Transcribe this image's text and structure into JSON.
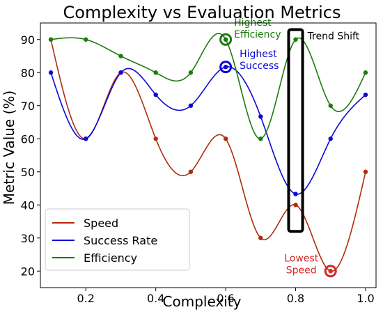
{
  "chart_data": {
    "type": "line",
    "title": "Complexity vs Evaluation Metrics",
    "xlabel": "Complexity",
    "ylabel": "Metric Value (%)",
    "xlim": [
      0.07,
      1.03
    ],
    "ylim": [
      15,
      95
    ],
    "xticks": [
      0.2,
      0.4,
      0.6,
      0.8,
      1.0
    ],
    "xtick_labels": [
      "0.2",
      "0.4",
      "0.6",
      "0.8",
      "1.0"
    ],
    "yticks": [
      20,
      30,
      40,
      50,
      60,
      70,
      80,
      90
    ],
    "ytick_labels": [
      "20",
      "30",
      "40",
      "50",
      "60",
      "70",
      "80",
      "90"
    ],
    "grid": false,
    "legend_position": "lower-left",
    "x": [
      0.1,
      0.2,
      0.3,
      0.4,
      0.5,
      0.6,
      0.7,
      0.8,
      0.9,
      1.0
    ],
    "series": [
      {
        "name": "Speed",
        "color": "#b22c0b",
        "values": [
          90,
          60,
          80,
          60,
          50,
          60,
          30,
          40,
          20,
          50
        ]
      },
      {
        "name": "Success Rate",
        "color": "#0a08d9",
        "values": [
          80,
          60,
          80,
          73.3,
          70,
          81.7,
          66.7,
          43.3,
          60,
          73.3
        ]
      },
      {
        "name": "Efficiency",
        "color": "#1d7a0f",
        "values": [
          90,
          90,
          85,
          80,
          80,
          90,
          60,
          90,
          70,
          80
        ]
      }
    ],
    "annotations": [
      {
        "id": "highest-efficiency",
        "lines": [
          "Highest",
          "Efficiency"
        ],
        "x": 0.6,
        "y": 90,
        "color": "#1d7a0f",
        "series": "Efficiency"
      },
      {
        "id": "highest-success",
        "lines": [
          "Highest",
          "Success"
        ],
        "x": 0.6,
        "y": 81.7,
        "color": "#0a08d9",
        "series": "Success Rate"
      },
      {
        "id": "lowest-speed",
        "lines": [
          "Lowest",
          "Speed"
        ],
        "x": 0.9,
        "y": 20,
        "color": "#d62728",
        "series": "Speed"
      },
      {
        "id": "trend-shift",
        "lines": [
          "Trend Shift"
        ],
        "x_range": [
          0.78,
          0.82
        ],
        "y_range": [
          32,
          93
        ],
        "color": "#000000"
      }
    ]
  }
}
